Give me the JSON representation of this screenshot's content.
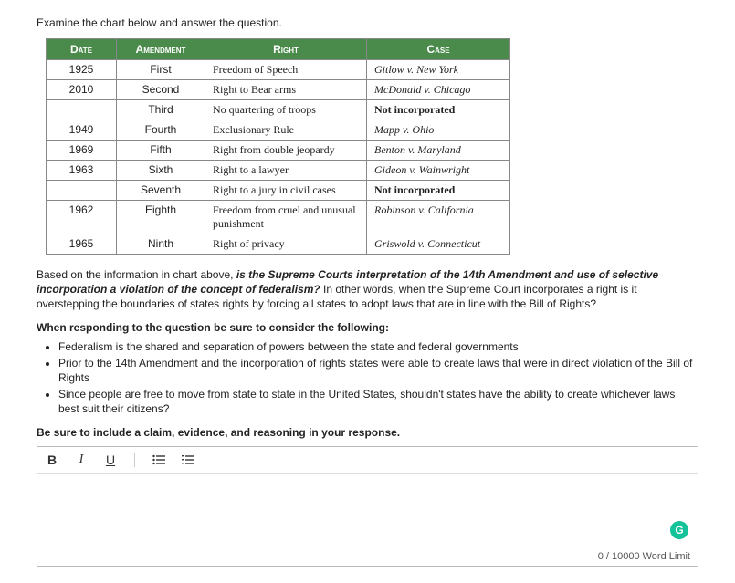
{
  "intro": "Examine the chart below and answer the question.",
  "table": {
    "headers": [
      "Date",
      "Amendment",
      "Right",
      "Case"
    ],
    "rows": [
      {
        "date": "1925",
        "amendment": "First",
        "right": "Freedom of Speech",
        "case": "Gitlow v. New York",
        "notinc": false
      },
      {
        "date": "2010",
        "amendment": "Second",
        "right": "Right to Bear arms",
        "case": "McDonald v. Chicago",
        "notinc": false
      },
      {
        "date": "",
        "amendment": "Third",
        "right": "No quartering of troops",
        "case": "Not incorporated",
        "notinc": true
      },
      {
        "date": "1949",
        "amendment": "Fourth",
        "right": "Exclusionary Rule",
        "case": "Mapp v. Ohio",
        "notinc": false
      },
      {
        "date": "1969",
        "amendment": "Fifth",
        "right": "Right from double jeopardy",
        "case": "Benton v. Maryland",
        "notinc": false
      },
      {
        "date": "1963",
        "amendment": "Sixth",
        "right": "Right to a lawyer",
        "case": "Gideon v. Wainwright",
        "notinc": false
      },
      {
        "date": "",
        "amendment": "Seventh",
        "right": "Right to a jury in civil cases",
        "case": "Not incorporated",
        "notinc": true
      },
      {
        "date": "1962",
        "amendment": "Eighth",
        "right": "Freedom from cruel and unusual punishment",
        "case": "Robinson v. California",
        "notinc": false
      },
      {
        "date": "1965",
        "amendment": "Ninth",
        "right": "Right of privacy",
        "case": "Griswold v. Connecticut",
        "notinc": false
      }
    ]
  },
  "question": {
    "lead": "Based on the information in chart above, ",
    "bolditalic": "is the Supreme Courts interpretation of the 14th Amendment and use of selective incorporation a violation of the concept of federalism?",
    "tail": " In other words, when the Supreme Court incorporates a right is it overstepping the boundaries of states rights by forcing all states to adopt laws that are in line with the Bill of Rights?"
  },
  "consider_heading": "When responding to the question be sure to consider the following:",
  "bullets": [
    "Federalism is the shared and separation of powers between the state and federal governments",
    "Prior to the 14th Amendment and the incorporation of rights states were able to create laws that were in direct violation of the Bill of Rights",
    "Since people are free to move from state to state in the United States, shouldn't states have the ability to create whichever laws best suit their citizens?"
  ],
  "cer": "Be sure to include a claim, evidence, and reasoning in your response.",
  "editor": {
    "buttons": {
      "bold": "B",
      "italic": "I",
      "underline": "U",
      "ul": "≣",
      "ol": "≣"
    },
    "grammarly": "G",
    "word_count": "0",
    "word_limit_label": " / 10000 Word Limit"
  }
}
